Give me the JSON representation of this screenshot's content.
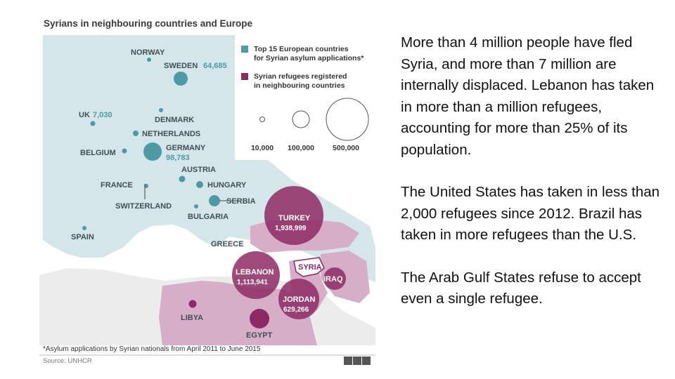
{
  "map": {
    "title": "Syrians in neighbouring countries and Europe",
    "legend": {
      "european_label_line1": "Top 15 European countries",
      "european_label_line2": "for Syrian asylum applications*",
      "neighbour_label_line1": "Syrian refugees registered",
      "neighbour_label_line2": "in neighbouring countries",
      "scale": [
        "10,000",
        "100,000",
        "500,000"
      ]
    },
    "labels": {
      "norway": "NORWAY",
      "sweden": "SWEDEN",
      "sweden_value": "64,685",
      "uk": "UK",
      "uk_value": "7,030",
      "denmark": "DENMARK",
      "netherlands": "NETHERLANDS",
      "belgium": "BELGIUM",
      "germany": "GERMANY",
      "germany_value": "98,783",
      "austria": "AUSTRIA",
      "france": "FRANCE",
      "hungary": "HUNGARY",
      "switzerland": "SWITZERLAND",
      "serbia": "SERBIA",
      "bulgaria": "BULGARIA",
      "spain": "SPAIN",
      "greece": "GREECE",
      "turkey": "TURKEY",
      "turkey_value": "1,938,999",
      "lebanon": "LEBANON",
      "lebanon_value": "1,113,941",
      "syria": "SYRIA",
      "iraq": "IRAQ",
      "jordan": "JORDAN",
      "jordan_value": "629,266",
      "libya": "LIBYA",
      "egypt": "EGYPT"
    },
    "footnote": "*Asylum applications by Syrian nationals from April 2011 to June 2015",
    "source": "Source: UNHCR",
    "logo": "BBC",
    "colors": {
      "europe_marker": "#4e9aa3",
      "neighbour_marker": "#8e2a63",
      "europe_land": "#d5e6ea",
      "africa_land": "#ececec",
      "neighbour_land": "#d6aec8",
      "sea": "#ffffff"
    }
  },
  "text": {
    "paragraph1": "More than 4 million people have fled Syria, and more than 7 million are internally displaced. Lebanon has taken in more than a million refugees, accounting for more than 25% of its population.",
    "paragraph2": "The United States has taken in less than 2,000 refugees since 2012.  Brazil has taken in more refugees than the U.S.",
    "paragraph3": "The Arab Gulf States refuse to accept even a single refugee."
  }
}
